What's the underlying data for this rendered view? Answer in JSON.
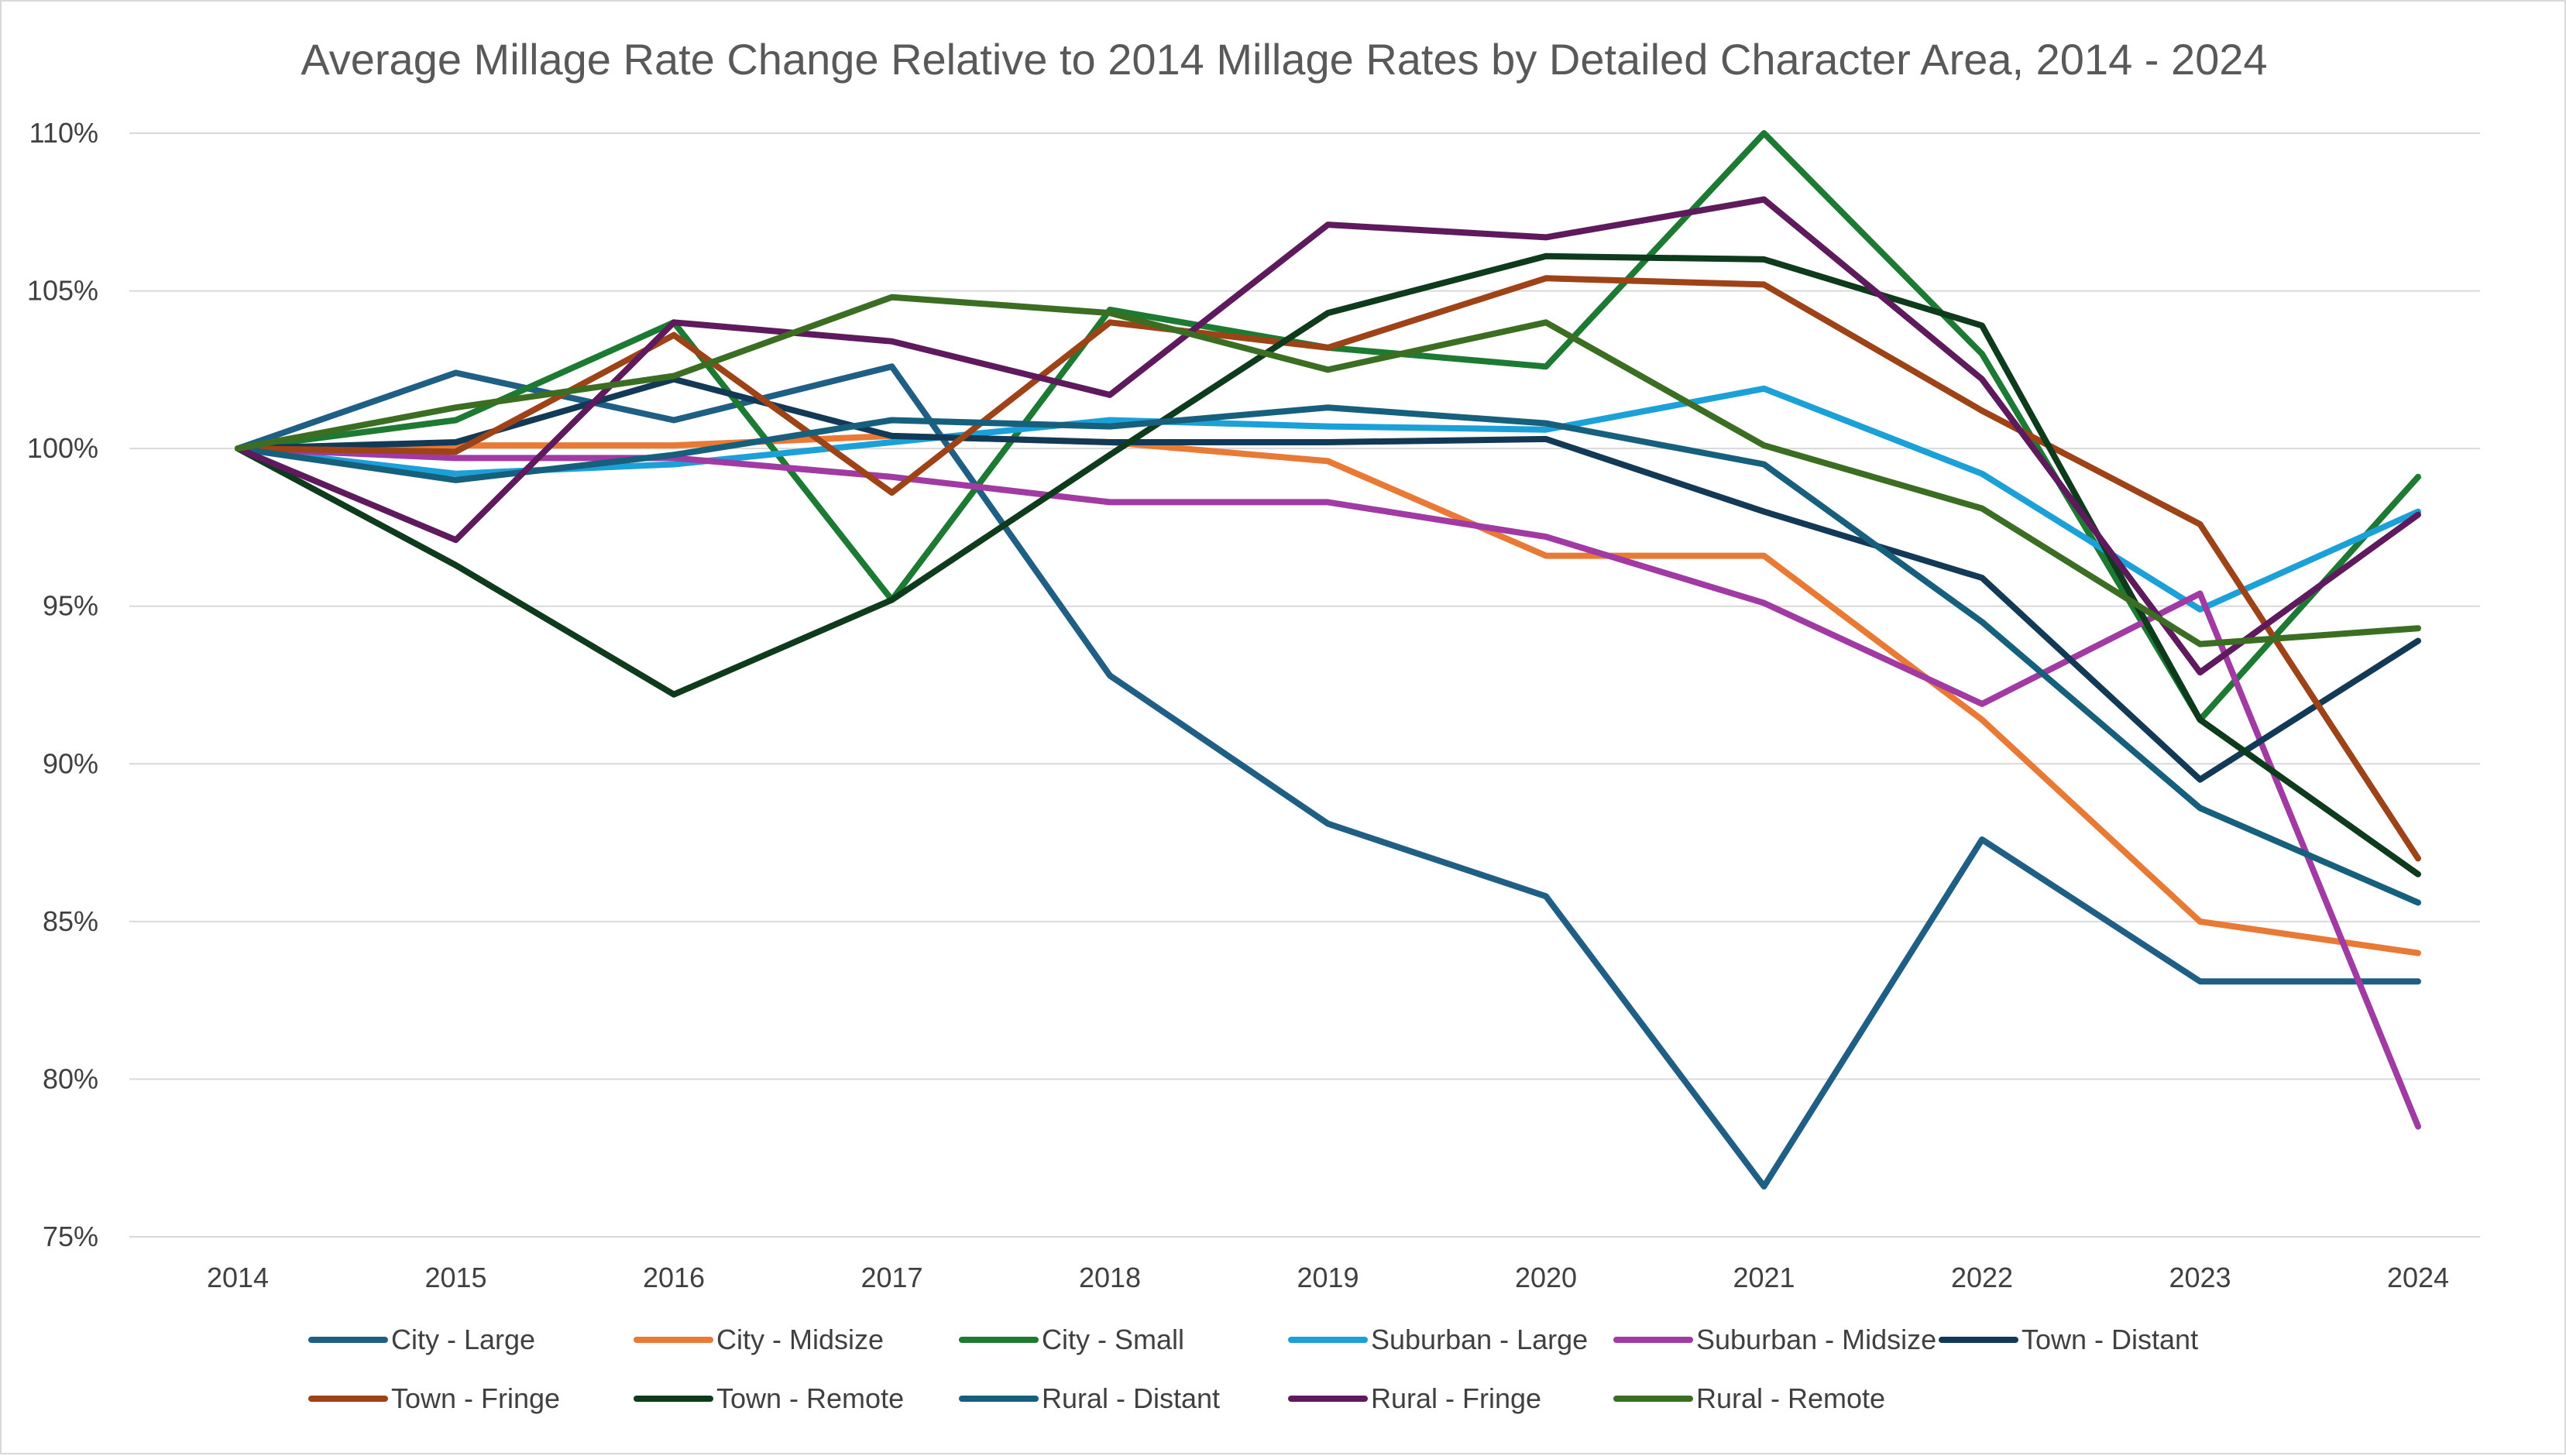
{
  "chart_data": {
    "type": "line",
    "title": "Average Millage Rate Change Relative to 2014 Millage Rates by Detailed Character Area, 2014 - 2024",
    "xlabel": "",
    "ylabel": "",
    "x": [
      "2014",
      "2015",
      "2016",
      "2017",
      "2018",
      "2019",
      "2020",
      "2021",
      "2022",
      "2023",
      "2024"
    ],
    "ylim": [
      75,
      110
    ],
    "yticks": [
      75,
      80,
      85,
      90,
      95,
      100,
      105,
      110
    ],
    "ytick_labels": [
      "75%",
      "80%",
      "85%",
      "90%",
      "95%",
      "100%",
      "105%",
      "110%"
    ],
    "grid": "horizontal",
    "legend_position": "bottom",
    "series": [
      {
        "name": "City - Large",
        "color": "#1f5f86",
        "values": [
          100,
          102.4,
          100.9,
          102.6,
          92.8,
          88.1,
          85.8,
          76.6,
          87.6,
          83.1,
          83.1
        ]
      },
      {
        "name": "City - Midsize",
        "color": "#e97a35",
        "values": [
          100,
          100.1,
          100.1,
          100.4,
          100.2,
          99.6,
          96.6,
          96.6,
          91.4,
          85.0,
          84.0
        ]
      },
      {
        "name": "City - Small",
        "color": "#1c7a32",
        "values": [
          100,
          100.9,
          104.0,
          95.2,
          104.4,
          103.2,
          102.6,
          110.0,
          103.0,
          91.4,
          99.1
        ]
      },
      {
        "name": "Suburban - Large",
        "color": "#1ba0d8",
        "values": [
          100,
          99.2,
          99.5,
          100.2,
          100.9,
          100.7,
          100.6,
          101.9,
          99.2,
          94.9,
          98.0
        ]
      },
      {
        "name": "Suburban - Midsize",
        "color": "#a13aa3",
        "values": [
          100,
          99.7,
          99.7,
          99.1,
          98.3,
          98.3,
          97.2,
          95.1,
          91.9,
          95.4,
          78.5
        ]
      },
      {
        "name": "Town - Distant",
        "color": "#123a57",
        "values": [
          100,
          100.2,
          102.2,
          100.4,
          100.2,
          100.2,
          100.3,
          98.0,
          95.9,
          89.5,
          93.9
        ]
      },
      {
        "name": "Town - Fringe",
        "color": "#9e4317",
        "values": [
          100,
          99.9,
          103.6,
          98.6,
          104.0,
          103.2,
          105.4,
          105.2,
          101.2,
          97.6,
          87.0
        ]
      },
      {
        "name": "Town - Remote",
        "color": "#0d3b1c",
        "values": [
          100,
          96.3,
          92.2,
          95.2,
          99.8,
          104.3,
          106.1,
          106.0,
          103.9,
          91.4,
          86.5
        ]
      },
      {
        "name": "Rural - Distant",
        "color": "#17607d",
        "values": [
          100,
          99.0,
          99.8,
          100.9,
          100.7,
          101.3,
          100.8,
          99.5,
          94.5,
          88.6,
          85.6
        ]
      },
      {
        "name": "Rural - Fringe",
        "color": "#5e1a5c",
        "values": [
          100,
          97.1,
          104.0,
          103.4,
          101.7,
          107.1,
          106.7,
          107.9,
          102.2,
          92.9,
          97.9
        ]
      },
      {
        "name": "Rural - Remote",
        "color": "#3b6e22",
        "values": [
          100,
          101.3,
          102.3,
          104.8,
          104.3,
          102.5,
          104.0,
          100.1,
          98.1,
          93.8,
          94.3
        ]
      }
    ]
  }
}
